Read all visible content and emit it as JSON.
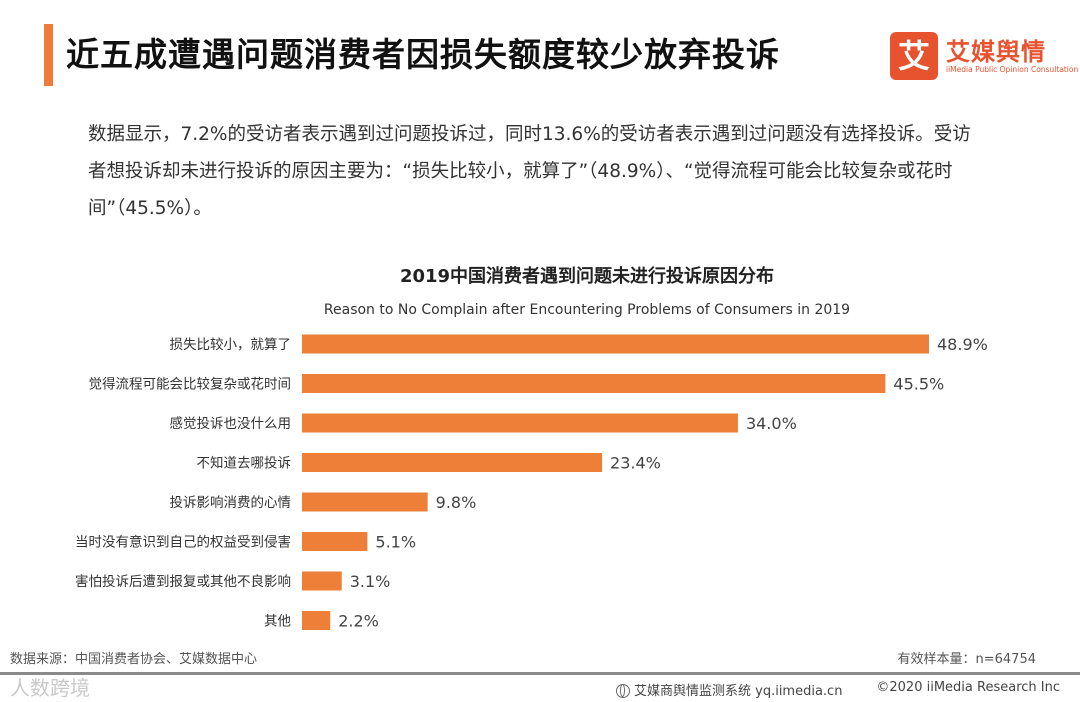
{
  "page": {
    "title": "近五成遭遇问题消费者因损失额度较少放弃投诉",
    "summary": "数据显示，7.2%的受访者表示遇到过问题投诉过，同时13.6%的受访者表示遇到过问题没有选择投诉。受访者想投诉却未进行投诉的原因主要为：“损失比较小，就算了”（48.9%）、“觉得流程可能会比较复杂或花时间”（45.5%）。"
  },
  "logo": {
    "mark": "艾",
    "name": "艾媒舆情",
    "subtitle": "iiMedia Public Opinion Consultation",
    "icon": "iimedia-logo-icon"
  },
  "colors": {
    "bar": "#ee7f38",
    "accent": "#ee7b3a",
    "brand": "#e8532f"
  },
  "chart_data": {
    "type": "bar",
    "orientation": "horizontal",
    "title": "2019中国消费者遇到问题未进行投诉原因分布",
    "subtitle": "Reason to No Complain after Encountering Problems of Consumers in 2019",
    "xlabel": "",
    "ylabel": "",
    "xlim": [
      0,
      48.9
    ],
    "grid": false,
    "categories": [
      "损失比较小，就算了",
      "觉得流程可能会比较复杂或花时间",
      "感觉投诉也没什么用",
      "不知道去哪投诉",
      "投诉影响消费的心情",
      "当时没有意识到自己的权益受到侵害",
      "害怕投诉后遭到报复或其他不良影响",
      "其他"
    ],
    "values": [
      48.9,
      45.5,
      34.0,
      23.4,
      9.8,
      5.1,
      3.1,
      2.2
    ],
    "value_labels": [
      "48.9%",
      "45.5%",
      "34.0%",
      "23.4%",
      "9.8%",
      "5.1%",
      "3.1%",
      "2.2%"
    ]
  },
  "footer": {
    "source": "数据来源：中国消费者协会、艾媒数据中心",
    "sample": "有效样本量：n=64754",
    "watermark": "人数跨境",
    "monitor": "艾媒商舆情监测系统 yq.iimedia.cn",
    "copyright": "©2020  iiMedia Research  Inc",
    "monitor_icon": "globe-icon"
  }
}
